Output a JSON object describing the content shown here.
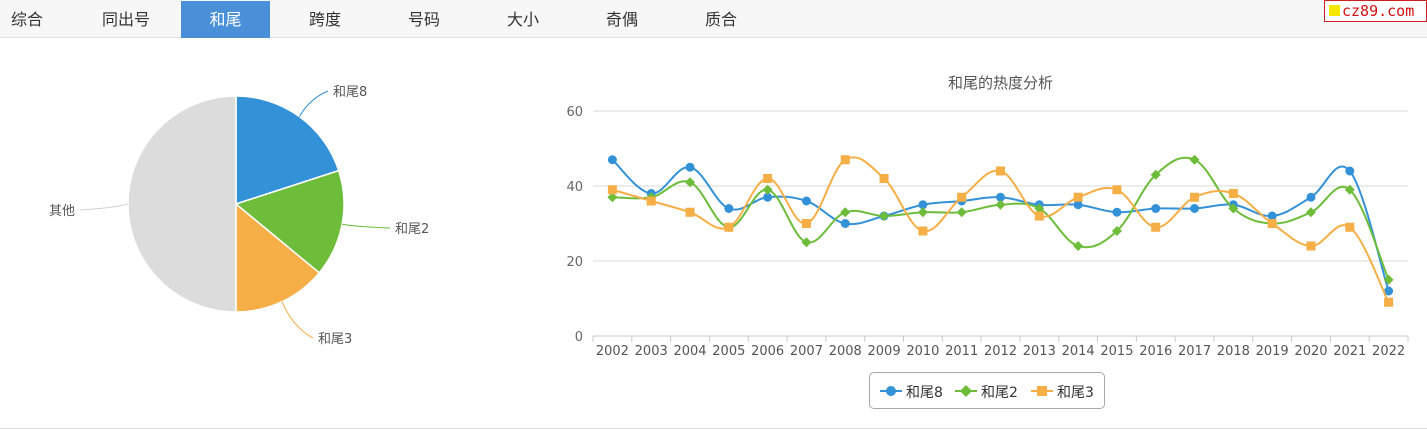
{
  "tabs": [
    {
      "label": "综合",
      "active": false
    },
    {
      "label": "同出号",
      "active": false
    },
    {
      "label": "和尾",
      "active": true
    },
    {
      "label": "跨度",
      "active": false
    },
    {
      "label": "号码",
      "active": false
    },
    {
      "label": "大小",
      "active": false
    },
    {
      "label": "奇偶",
      "active": false
    },
    {
      "label": "质合",
      "active": false
    }
  ],
  "brand": {
    "text": "cz89.com"
  },
  "colors": {
    "blue": "#3391d7",
    "green": "#6dbd3a",
    "orange": "#f6ae47",
    "gray": "#dcdcdc",
    "active_tab": "#4a90d9"
  },
  "chart_data": [
    {
      "type": "pie",
      "title": "",
      "slices": [
        {
          "label": "和尾8",
          "value": 20,
          "color": "#3391d7"
        },
        {
          "label": "和尾2",
          "value": 16,
          "color": "#6dbd3a"
        },
        {
          "label": "和尾3",
          "value": 14,
          "color": "#f6ae47"
        },
        {
          "label": "其他",
          "value": 50,
          "color": "#dcdcdc"
        }
      ]
    },
    {
      "type": "line",
      "title": "和尾的热度分析",
      "xlabel": "",
      "ylabel": "",
      "x": [
        "2002",
        "2003",
        "2004",
        "2005",
        "2006",
        "2007",
        "2008",
        "2009",
        "2010",
        "2011",
        "2012",
        "2013",
        "2014",
        "2015",
        "2016",
        "2017",
        "2018",
        "2019",
        "2020",
        "2021",
        "2022"
      ],
      "ylim": [
        0,
        60
      ],
      "yticks": [
        0,
        20,
        40,
        60
      ],
      "grid": true,
      "legend": "bottom",
      "series": [
        {
          "name": "和尾8",
          "color": "#3391d7",
          "marker": "circle",
          "values": [
            47,
            38,
            45,
            34,
            37,
            36,
            30,
            32,
            35,
            36,
            37,
            35,
            35,
            33,
            34,
            34,
            35,
            32,
            37,
            44,
            12
          ]
        },
        {
          "name": "和尾2",
          "color": "#6dbd3a",
          "marker": "diamond",
          "values": [
            37,
            37,
            41,
            29,
            39,
            25,
            33,
            32,
            33,
            33,
            35,
            34,
            24,
            28,
            43,
            47,
            34,
            30,
            33,
            39,
            15
          ]
        },
        {
          "name": "和尾3",
          "color": "#f6ae47",
          "marker": "square",
          "values": [
            39,
            36,
            33,
            29,
            42,
            30,
            47,
            42,
            28,
            37,
            44,
            32,
            37,
            39,
            29,
            37,
            38,
            30,
            24,
            29,
            9
          ]
        }
      ]
    }
  ]
}
